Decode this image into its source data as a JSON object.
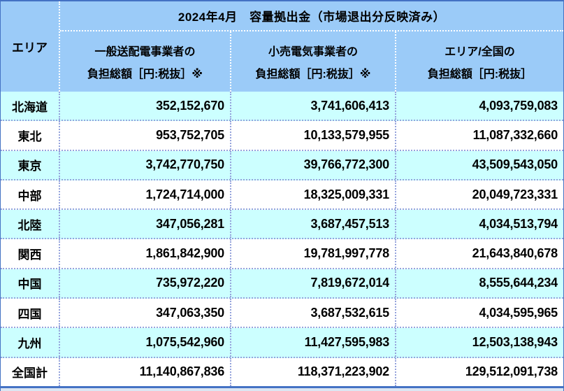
{
  "colors": {
    "header_bg": "#9BCBF8",
    "row_bg": "#FFFFFF",
    "row_alt_bg": "#CCFFFF",
    "grid_line": "#95A3DC",
    "header_grid_line": "#FFFFFF",
    "outer_border": "#4472C4",
    "bottom_strip": "#DCE6F2",
    "text": "#000000"
  },
  "table": {
    "title": "2024年4月　容量拠出金（市場退出分反映済み）",
    "area_header": "エリア",
    "columns": [
      {
        "line1": "一般送配電事業者の",
        "line2": "負担総額［円:税抜］※"
      },
      {
        "line1": "小売電気事業者の",
        "line2": "負担総額［円:税抜］※"
      },
      {
        "line1": "エリア/全国の",
        "line2": "負担総額［円:税抜］"
      }
    ],
    "rows": [
      {
        "area": "北海道",
        "values": [
          "352,152,670",
          "3,741,606,413",
          "4,093,759,083"
        ]
      },
      {
        "area": "東北",
        "values": [
          "953,752,705",
          "10,133,579,955",
          "11,087,332,660"
        ]
      },
      {
        "area": "東京",
        "values": [
          "3,742,770,750",
          "39,766,772,300",
          "43,509,543,050"
        ]
      },
      {
        "area": "中部",
        "values": [
          "1,724,714,000",
          "18,325,009,331",
          "20,049,723,331"
        ]
      },
      {
        "area": "北陸",
        "values": [
          "347,056,281",
          "3,687,457,513",
          "4,034,513,794"
        ]
      },
      {
        "area": "関西",
        "values": [
          "1,861,842,900",
          "19,781,997,778",
          "21,643,840,678"
        ]
      },
      {
        "area": "中国",
        "values": [
          "735,972,220",
          "7,819,672,014",
          "8,555,644,234"
        ]
      },
      {
        "area": "四国",
        "values": [
          "347,063,350",
          "3,687,532,615",
          "4,034,595,965"
        ]
      },
      {
        "area": "九州",
        "values": [
          "1,075,542,960",
          "11,427,595,983",
          "12,503,138,943"
        ]
      },
      {
        "area": "全国計",
        "values": [
          "11,140,867,836",
          "118,371,223,902",
          "129,512,091,738"
        ]
      }
    ]
  }
}
